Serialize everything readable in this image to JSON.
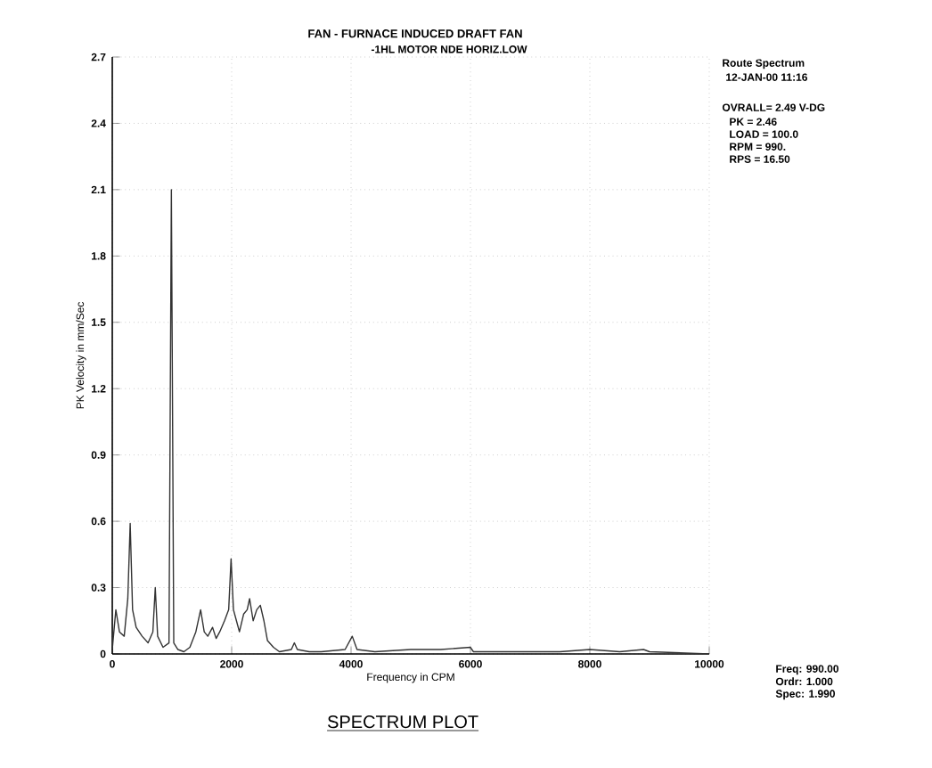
{
  "chart_data": {
    "type": "line",
    "title": "FAN - FURNACE INDUCED DRAFT FAN",
    "subtitle": "-1HL  MOTOR NDE HORIZ.LOW",
    "xlabel": "Frequency in CPM",
    "ylabel": "PK Velocity in mm/Sec",
    "x": [
      0,
      60,
      120,
      200,
      260,
      300,
      340,
      400,
      500,
      600,
      680,
      720,
      760,
      850,
      950,
      990,
      1030,
      1100,
      1200,
      1300,
      1400,
      1480,
      1540,
      1600,
      1680,
      1740,
      1800,
      1880,
      1950,
      1990,
      2030,
      2080,
      2130,
      2200,
      2260,
      2300,
      2360,
      2420,
      2480,
      2540,
      2600,
      2700,
      2800,
      3000,
      3050,
      3100,
      3300,
      3500,
      3900,
      4020,
      4100,
      4400,
      5000,
      5500,
      6000,
      6050,
      6500,
      7000,
      7500,
      8000,
      8500,
      8900,
      9000,
      10000
    ],
    "series": [
      {
        "color": "#333333",
        "values": [
          0.02,
          0.2,
          0.1,
          0.08,
          0.25,
          0.59,
          0.2,
          0.12,
          0.08,
          0.05,
          0.1,
          0.3,
          0.08,
          0.03,
          0.05,
          2.1,
          0.05,
          0.02,
          0.01,
          0.03,
          0.1,
          0.2,
          0.1,
          0.08,
          0.12,
          0.07,
          0.1,
          0.15,
          0.2,
          0.43,
          0.2,
          0.15,
          0.1,
          0.18,
          0.2,
          0.25,
          0.15,
          0.2,
          0.22,
          0.15,
          0.06,
          0.03,
          0.01,
          0.02,
          0.05,
          0.02,
          0.01,
          0.01,
          0.02,
          0.08,
          0.02,
          0.01,
          0.02,
          0.02,
          0.03,
          0.01,
          0.01,
          0.01,
          0.01,
          0.02,
          0.01,
          0.02,
          0.01,
          0.0
        ]
      }
    ],
    "xlim": [
      0,
      10000
    ],
    "xticks": [
      0,
      2000,
      4000,
      6000,
      8000,
      10000
    ],
    "ylim": [
      0,
      2.7
    ],
    "yticks": [
      0,
      0.3,
      0.6,
      0.9,
      1.2,
      1.5,
      1.8,
      2.1,
      2.4,
      2.7
    ],
    "grid": true,
    "marker": "none",
    "line_style": "solid",
    "annotations": [
      "Route Spectrum",
      "12-JAN-00 11:16",
      "OVRALL= 2.49 V-DG",
      "PK = 2.46",
      "LOAD = 100.0",
      "RPM = 990.",
      "RPS = 16.50",
      "Freq: 990.00",
      "Ordr: 1.000",
      "Spec: 1.990",
      "SPECTRUM PLOT"
    ]
  }
}
